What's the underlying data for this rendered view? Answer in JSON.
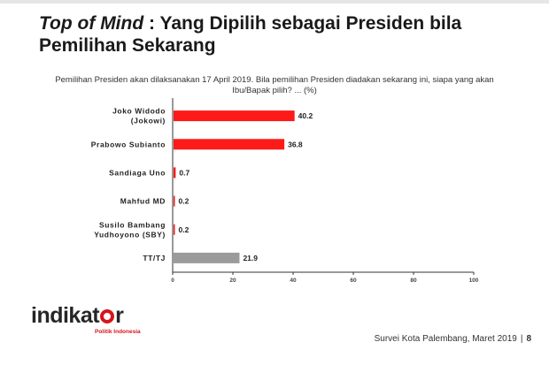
{
  "title": {
    "italic": "Top of Mind",
    "rest": " : Yang Dipilih sebagai Presiden bila Pemilihan Sekarang"
  },
  "question": "Pemilihan Presiden akan dilaksanakan 17 April 2019. Bila pemilihan Presiden diadakan sekarang ini, siapa yang akan Ibu/Bapak pilih? ... (%)",
  "colors": {
    "primary": "#ff1a1a",
    "other": "#9b9b9b",
    "brand": "#d7141b"
  },
  "chart_data": {
    "type": "bar",
    "orientation": "horizontal",
    "categories": [
      [
        "Joko Widodo",
        "(Jokowi)"
      ],
      [
        "Prabowo Subianto"
      ],
      [
        "Sandiaga Uno"
      ],
      [
        "Mahfud MD"
      ],
      [
        "Susilo Bambang",
        "Yudhoyono (SBY)"
      ],
      [
        "TT/TJ"
      ]
    ],
    "values": [
      40.2,
      36.8,
      0.7,
      0.2,
      0.2,
      21.9
    ],
    "value_labels": [
      "40.2",
      "36.8",
      "0.7",
      "0.2",
      "0.2",
      "21.9"
    ],
    "bar_colors": [
      "#ff1a1a",
      "#ff1a1a",
      "#ff1a1a",
      "#ff1a1a",
      "#ff1a1a",
      "#9b9b9b"
    ],
    "xlim": [
      0,
      100
    ],
    "xticks": [
      0,
      20,
      40,
      60,
      80,
      100
    ],
    "grid": false
  },
  "logo": {
    "text_before": "indikat",
    "text_after": "r",
    "subtitle": "Politik Indonesia"
  },
  "footer": {
    "survey": "Survei Kota Palembang, Maret 2019",
    "separator": "|",
    "page": "8"
  }
}
